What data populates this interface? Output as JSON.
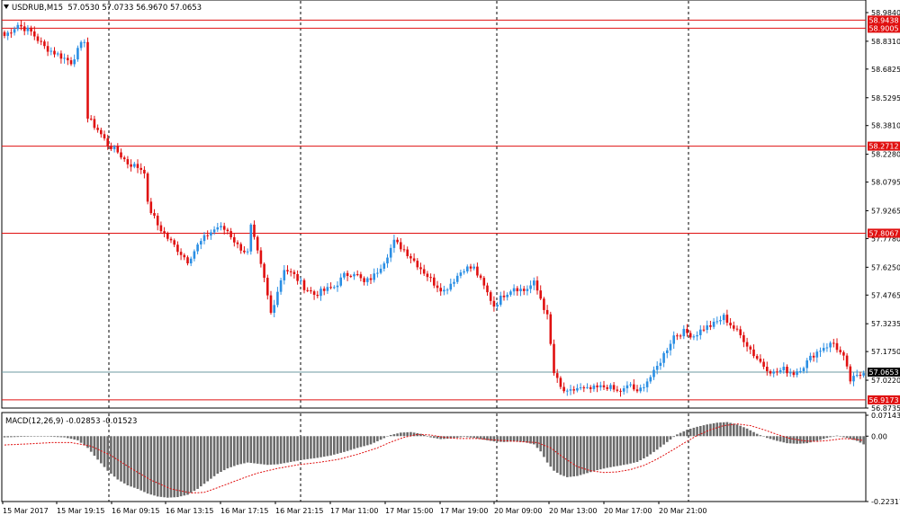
{
  "header": {
    "symbol": "USDRUB,M15",
    "ohlc": "57.0530 57.0733 56.9670 57.0653"
  },
  "macd_panel": {
    "label": "MACD(12,26,9) -0.02853 -0.01523"
  },
  "colors": {
    "bull": "#2b8fe4",
    "bear": "#e01010",
    "level_line": "#e01010",
    "current_price_line": "#6e9aa0",
    "histogram": "#6b6b6b",
    "signal": "#e01010",
    "grid_vertical": "#000000"
  },
  "chart_data": [
    {
      "type": "candlestick",
      "symbol": "USDRUB",
      "timeframe": "M15",
      "ylim": [
        56.8735,
        58.984
      ],
      "y_ticks": [
        "58.9840",
        "58.8310",
        "58.6825",
        "58.5295",
        "58.3810",
        "58.2280",
        "58.0795",
        "57.9265",
        "57.7780",
        "57.6250",
        "57.4765",
        "57.3235",
        "57.1750",
        "57.0220",
        "56.8735"
      ],
      "x_ticks": [
        "15 Mar 2017",
        "15 Mar 19:15",
        "16 Mar 09:15",
        "16 Mar 13:15",
        "16 Mar 17:15",
        "16 Mar 21:15",
        "17 Mar 11:00",
        "17 Mar 15:00",
        "17 Mar 19:00",
        "20 Mar 09:00",
        "20 Mar 13:00",
        "20 Mar 17:00",
        "20 Mar 21:00"
      ],
      "horizontal_levels": [
        "58.9438",
        "58.9005",
        "58.2712",
        "57.8067",
        "56.9173"
      ],
      "current_price": "57.0653",
      "grid": "vertical dashed separators",
      "close_path": [
        [
          0,
          58.86
        ],
        [
          4,
          58.92
        ],
        [
          8,
          58.88
        ],
        [
          12,
          58.8
        ],
        [
          16,
          58.76
        ],
        [
          20,
          58.72
        ],
        [
          24,
          58.84
        ],
        [
          25,
          58.42
        ],
        [
          28,
          58.36
        ],
        [
          31,
          58.28
        ],
        [
          34,
          58.24
        ],
        [
          37,
          58.18
        ],
        [
          40,
          58.16
        ],
        [
          42,
          58.14
        ],
        [
          43,
          57.96
        ],
        [
          46,
          57.85
        ],
        [
          49,
          57.78
        ],
        [
          52,
          57.72
        ],
        [
          55,
          57.66
        ],
        [
          58,
          57.74
        ],
        [
          61,
          57.8
        ],
        [
          64,
          57.84
        ],
        [
          67,
          57.82
        ],
        [
          70,
          57.74
        ],
        [
          73,
          57.7
        ],
        [
          74,
          57.84
        ],
        [
          76,
          57.7
        ],
        [
          78,
          57.56
        ],
        [
          80,
          57.38
        ],
        [
          82,
          57.5
        ],
        [
          84,
          57.62
        ],
        [
          87,
          57.58
        ],
        [
          90,
          57.52
        ],
        [
          93,
          57.48
        ],
        [
          96,
          57.5
        ],
        [
          99,
          57.52
        ],
        [
          102,
          57.58
        ],
        [
          105,
          57.6
        ],
        [
          108,
          57.54
        ],
        [
          111,
          57.58
        ],
        [
          114,
          57.66
        ],
        [
          117,
          57.76
        ],
        [
          120,
          57.72
        ],
        [
          123,
          57.66
        ],
        [
          126,
          57.6
        ],
        [
          129,
          57.54
        ],
        [
          132,
          57.5
        ],
        [
          135,
          57.56
        ],
        [
          138,
          57.62
        ],
        [
          141,
          57.62
        ],
        [
          144,
          57.52
        ],
        [
          147,
          57.42
        ],
        [
          150,
          57.48
        ],
        [
          153,
          57.52
        ],
        [
          156,
          57.5
        ],
        [
          159,
          57.54
        ],
        [
          161,
          57.46
        ],
        [
          163,
          57.36
        ],
        [
          165,
          57.06
        ],
        [
          167,
          56.98
        ],
        [
          169,
          56.95
        ],
        [
          172,
          56.98
        ],
        [
          175,
          56.97
        ],
        [
          178,
          56.98
        ],
        [
          181,
          56.99
        ],
        [
          184,
          56.96
        ],
        [
          186,
          56.97
        ],
        [
          188,
          57.0
        ],
        [
          190,
          56.95
        ],
        [
          192,
          57.0
        ],
        [
          195,
          57.06
        ],
        [
          198,
          57.16
        ],
        [
          201,
          57.26
        ],
        [
          204,
          57.28
        ],
        [
          207,
          57.26
        ],
        [
          210,
          57.3
        ],
        [
          213,
          57.32
        ],
        [
          216,
          57.36
        ],
        [
          219,
          57.3
        ],
        [
          222,
          57.24
        ],
        [
          225,
          57.16
        ],
        [
          228,
          57.1
        ],
        [
          231,
          57.06
        ],
        [
          234,
          57.08
        ],
        [
          237,
          57.06
        ],
        [
          240,
          57.1
        ],
        [
          243,
          57.16
        ],
        [
          246,
          57.2
        ],
        [
          249,
          57.22
        ],
        [
          252,
          57.14
        ],
        [
          254,
          57.02
        ],
        [
          256,
          57.04
        ],
        [
          258,
          57.06
        ]
      ]
    },
    {
      "type": "macd",
      "params": "12,26,9",
      "macd": "-0.02853",
      "signal_value": "-0.01523",
      "ylim": [
        -0.22317,
        0.07143
      ],
      "y_ticks": [
        "0.07143",
        "0.00",
        "-0.22317"
      ],
      "macd_path": [
        [
          0,
          -0.004
        ],
        [
          6,
          -0.002
        ],
        [
          12,
          -0.001
        ],
        [
          18,
          -0.004
        ],
        [
          22,
          -0.014
        ],
        [
          25,
          -0.04
        ],
        [
          28,
          -0.08
        ],
        [
          31,
          -0.118
        ],
        [
          34,
          -0.148
        ],
        [
          37,
          -0.168
        ],
        [
          40,
          -0.18
        ],
        [
          43,
          -0.196
        ],
        [
          46,
          -0.206
        ],
        [
          49,
          -0.21
        ],
        [
          52,
          -0.208
        ],
        [
          55,
          -0.2
        ],
        [
          58,
          -0.18
        ],
        [
          61,
          -0.154
        ],
        [
          64,
          -0.128
        ],
        [
          67,
          -0.11
        ],
        [
          70,
          -0.098
        ],
        [
          73,
          -0.09
        ],
        [
          76,
          -0.094
        ],
        [
          79,
          -0.098
        ],
        [
          82,
          -0.096
        ],
        [
          86,
          -0.088
        ],
        [
          90,
          -0.08
        ],
        [
          94,
          -0.074
        ],
        [
          98,
          -0.066
        ],
        [
          102,
          -0.054
        ],
        [
          106,
          -0.04
        ],
        [
          110,
          -0.028
        ],
        [
          113,
          -0.012
        ],
        [
          116,
          0.004
        ],
        [
          119,
          0.012
        ],
        [
          122,
          0.014
        ],
        [
          125,
          0.008
        ],
        [
          128,
          -0.004
        ],
        [
          131,
          -0.01
        ],
        [
          134,
          -0.008
        ],
        [
          138,
          -0.002
        ],
        [
          141,
          -0.006
        ],
        [
          144,
          -0.012
        ],
        [
          147,
          -0.018
        ],
        [
          150,
          -0.02
        ],
        [
          153,
          -0.018
        ],
        [
          156,
          -0.02
        ],
        [
          159,
          -0.028
        ],
        [
          161,
          -0.052
        ],
        [
          163,
          -0.09
        ],
        [
          165,
          -0.118
        ],
        [
          167,
          -0.132
        ],
        [
          169,
          -0.14
        ],
        [
          172,
          -0.136
        ],
        [
          175,
          -0.126
        ],
        [
          178,
          -0.116
        ],
        [
          181,
          -0.108
        ],
        [
          184,
          -0.102
        ],
        [
          187,
          -0.096
        ],
        [
          190,
          -0.088
        ],
        [
          193,
          -0.07
        ],
        [
          196,
          -0.046
        ],
        [
          199,
          -0.02
        ],
        [
          202,
          0.006
        ],
        [
          205,
          0.022
        ],
        [
          208,
          0.032
        ],
        [
          211,
          0.04
        ],
        [
          214,
          0.046
        ],
        [
          217,
          0.048
        ],
        [
          220,
          0.04
        ],
        [
          223,
          0.026
        ],
        [
          226,
          0.008
        ],
        [
          229,
          -0.006
        ],
        [
          232,
          -0.016
        ],
        [
          235,
          -0.024
        ],
        [
          238,
          -0.026
        ],
        [
          241,
          -0.024
        ],
        [
          244,
          -0.016
        ],
        [
          247,
          -0.006
        ],
        [
          250,
          0.002
        ],
        [
          253,
          -0.006
        ],
        [
          256,
          -0.016
        ],
        [
          258,
          -0.028
        ]
      ],
      "signal_path": [
        [
          0,
          -0.03
        ],
        [
          8,
          -0.026
        ],
        [
          14,
          -0.022
        ],
        [
          20,
          -0.022
        ],
        [
          26,
          -0.034
        ],
        [
          32,
          -0.066
        ],
        [
          38,
          -0.11
        ],
        [
          44,
          -0.15
        ],
        [
          50,
          -0.18
        ],
        [
          56,
          -0.194
        ],
        [
          60,
          -0.192
        ],
        [
          64,
          -0.176
        ],
        [
          70,
          -0.15
        ],
        [
          76,
          -0.126
        ],
        [
          82,
          -0.11
        ],
        [
          88,
          -0.098
        ],
        [
          94,
          -0.09
        ],
        [
          100,
          -0.08
        ],
        [
          106,
          -0.062
        ],
        [
          112,
          -0.04
        ],
        [
          116,
          -0.02
        ],
        [
          120,
          -0.004
        ],
        [
          124,
          0.006
        ],
        [
          128,
          0.004
        ],
        [
          132,
          -0.004
        ],
        [
          136,
          -0.008
        ],
        [
          142,
          -0.008
        ],
        [
          148,
          -0.014
        ],
        [
          154,
          -0.018
        ],
        [
          160,
          -0.022
        ],
        [
          164,
          -0.04
        ],
        [
          168,
          -0.074
        ],
        [
          172,
          -0.104
        ],
        [
          176,
          -0.118
        ],
        [
          180,
          -0.124
        ],
        [
          184,
          -0.122
        ],
        [
          188,
          -0.114
        ],
        [
          192,
          -0.1
        ],
        [
          196,
          -0.078
        ],
        [
          200,
          -0.052
        ],
        [
          204,
          -0.024
        ],
        [
          208,
          0.002
        ],
        [
          212,
          0.022
        ],
        [
          216,
          0.036
        ],
        [
          220,
          0.042
        ],
        [
          224,
          0.036
        ],
        [
          228,
          0.022
        ],
        [
          232,
          0.006
        ],
        [
          236,
          -0.008
        ],
        [
          240,
          -0.016
        ],
        [
          244,
          -0.018
        ],
        [
          248,
          -0.014
        ],
        [
          252,
          -0.008
        ],
        [
          255,
          -0.01
        ],
        [
          258,
          -0.015
        ]
      ]
    }
  ]
}
